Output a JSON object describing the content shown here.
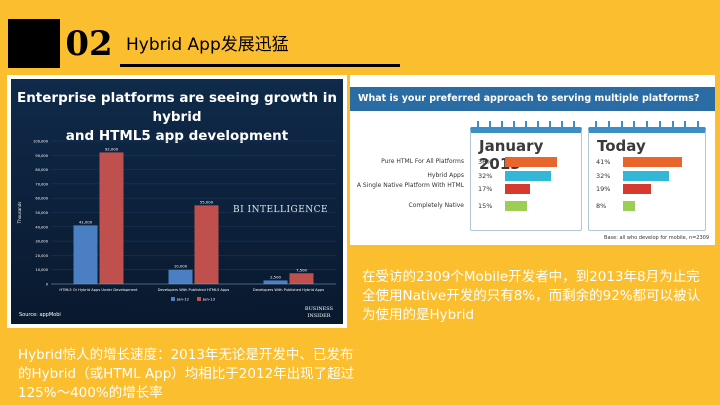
{
  "slide": {
    "number": "02",
    "title": "Hybrid App发展迅猛"
  },
  "left_chart": {
    "title_line1": "Enterprise platforms are seeing growth in hybrid",
    "title_line2": "and HTML5 app development",
    "watermark": "BI INTELLIGENCE",
    "source": "Source: appMobi",
    "logo_line1": "BUSINESS",
    "logo_line2": "INSIDER",
    "colors": {
      "jan12": "#4a7fc4",
      "jan13": "#c0504d",
      "background": "#0f2a4a"
    }
  },
  "right_chart": {
    "question": "What is your preferred approach to serving multiple platforms?",
    "panel1_title": "January 2013",
    "panel2_title": "Today",
    "rows": [
      {
        "label": "Pure HTML For All Platforms",
        "v2013": "36%",
        "vToday": "41%",
        "color": "#e8662c"
      },
      {
        "label": "Hybrid Apps",
        "v2013": "32%",
        "vToday": "32%",
        "color": "#33b7d6"
      },
      {
        "label": "A Single Native Platform With HTML",
        "v2013": "17%",
        "vToday": "19%",
        "color": "#d63a2f"
      },
      {
        "label": "Completely Native",
        "v2013": "15%",
        "vToday": "8%",
        "color": "#9ccd55"
      }
    ],
    "base_note": "Base: all who develop for mobile, n=2309"
  },
  "captions": {
    "right": "在受访的2309个Mobile开发者中，到2013年8月为止完全使用Native开发的只有8%，而剩余的92%都可以被认为使用的是Hybrid",
    "left": "Hybrid惊人的增长速度：2013年无论是开发中、已发布的Hybrid（或HTML App）均相比于2012年出现了超过125%～400%的增长率"
  },
  "chart_data": [
    {
      "type": "bar",
      "title": "Enterprise platforms are seeing growth in hybrid and HTML5 app development",
      "ylabel": "Thousands",
      "ylim": [
        0,
        100000
      ],
      "yticks": [
        0,
        10000,
        20000,
        30000,
        40000,
        50000,
        60000,
        70000,
        80000,
        90000,
        100000
      ],
      "categories": [
        "HTML5 Or Hybrid Apps Under Development",
        "Developers With Published HTML5 Apps",
        "Developers With Published Hybrid Apps"
      ],
      "series": [
        {
          "name": "Jan-12",
          "values": [
            41000,
            10000,
            2500
          ],
          "labels": [
            "41,000",
            "10,000",
            "2,500"
          ]
        },
        {
          "name": "Jan-13",
          "values": [
            92000,
            55000,
            7500
          ],
          "labels": [
            "92,000",
            "55,000",
            "7,500"
          ]
        }
      ],
      "legend": "bottom"
    },
    {
      "type": "bar",
      "title": "What is your preferred approach to serving multiple platforms?",
      "categories": [
        "Pure HTML For All Platforms",
        "Hybrid Apps",
        "A Single Native Platform With HTML",
        "Completely Native"
      ],
      "series": [
        {
          "name": "January 2013",
          "values": [
            36,
            32,
            17,
            15
          ]
        },
        {
          "name": "Today",
          "values": [
            41,
            32,
            19,
            8
          ]
        }
      ],
      "orientation": "horizontal"
    }
  ]
}
